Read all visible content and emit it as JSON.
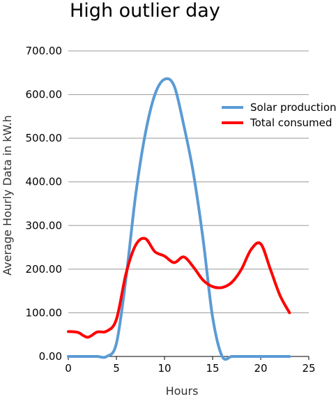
{
  "chart_data": {
    "type": "line",
    "title": "High outlier day",
    "xlabel": "Hours",
    "ylabel": "Average Hourly Data in kW.h",
    "xlim": [
      0,
      25
    ],
    "ylim": [
      0,
      700
    ],
    "x_ticks": [
      "0",
      "5",
      "10",
      "15",
      "20",
      "25"
    ],
    "y_ticks": [
      "0.00",
      "100.00",
      "200.00",
      "300.00",
      "400.00",
      "500.00",
      "600.00",
      "700.00"
    ],
    "grid": "horizontal",
    "legend_position": "right",
    "x": [
      0,
      1,
      2,
      3,
      4,
      5,
      6,
      7,
      8,
      9,
      10,
      11,
      12,
      13,
      14,
      15,
      16,
      17,
      18,
      19,
      20,
      21,
      22,
      23
    ],
    "series": [
      {
        "name": "Solar production",
        "color": "#5b9bd5",
        "values": [
          0,
          0,
          0,
          0,
          0,
          30,
          180,
          370,
          510,
          600,
          635,
          620,
          530,
          420,
          270,
          90,
          0,
          0,
          0,
          0,
          0,
          0,
          0,
          0
        ]
      },
      {
        "name": "Total consumed",
        "color": "#ff0000",
        "values": [
          57,
          55,
          44,
          56,
          58,
          85,
          190,
          255,
          270,
          240,
          230,
          215,
          228,
          205,
          175,
          160,
          158,
          170,
          200,
          245,
          258,
          200,
          140,
          100
        ]
      }
    ]
  }
}
